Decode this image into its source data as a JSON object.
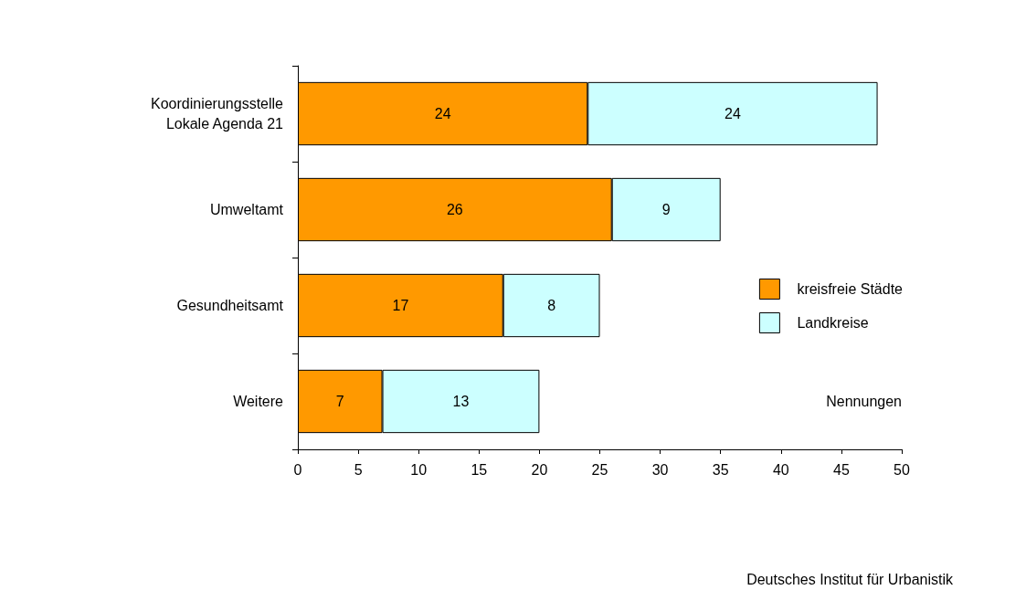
{
  "chart_data": {
    "type": "bar",
    "orientation": "horizontal",
    "stacked": true,
    "categories": [
      "Koordinierungsstelle\nLokale Agenda 21",
      "Umweltamt",
      "Gesundheitsamt",
      "Weitere"
    ],
    "series": [
      {
        "name": "kreisfreie Städte",
        "color": "#ff9900",
        "values": [
          24,
          26,
          17,
          7
        ]
      },
      {
        "name": "Landkreise",
        "color": "#ccffff",
        "values": [
          24,
          9,
          8,
          13
        ]
      }
    ],
    "xlim": [
      0,
      50
    ],
    "xticks": [
      0,
      5,
      10,
      15,
      20,
      25,
      30,
      35,
      40,
      45,
      50
    ],
    "xlabel": "Nennungen",
    "data_labels": true,
    "grid": false,
    "legend": "right",
    "annotations": [
      "Deutsches Institut für Urbanistik"
    ]
  }
}
